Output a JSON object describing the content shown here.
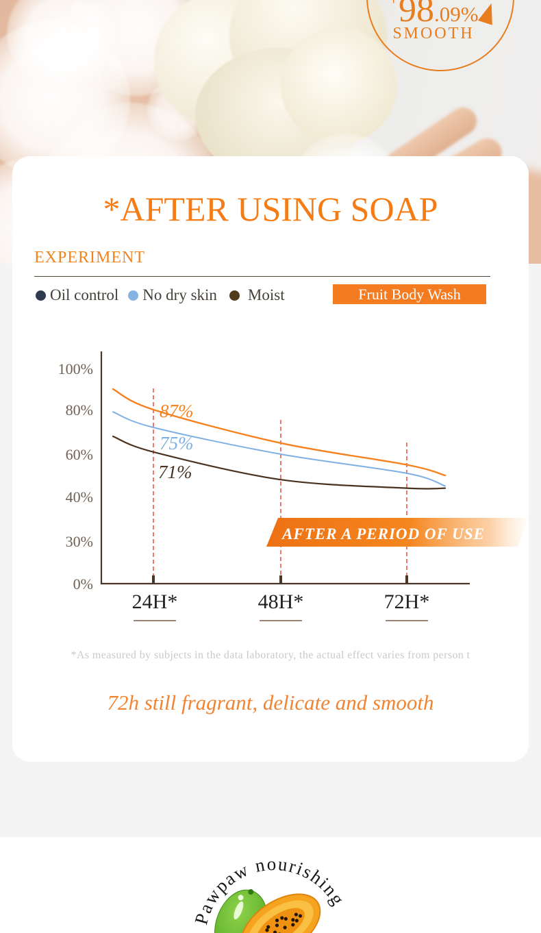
{
  "palette": {
    "accent_orange": "#f47b20",
    "title_orange": "#f57c15",
    "tagline_orange": "#f08433",
    "guide_red": "#e8402e",
    "axis_brown": "#4a3526"
  },
  "hero": {
    "badge": {
      "prefix": "+",
      "main": "98",
      "decimals": ".09%",
      "word": "SMOOTH"
    }
  },
  "card": {
    "title": "*AFTER USING SOAP",
    "section_label": "EXPERIMENT",
    "legend": [
      {
        "label": "Oil control",
        "dot_color": "#2e3a4e"
      },
      {
        "label": "No dry skin",
        "dot_color": "#85b4e2"
      },
      {
        "label": "Moist",
        "dot_color": "#543a1c"
      }
    ],
    "product_button_label": "Fruit Body Wash",
    "footnote": "*As measured by subjects in the data laboratory, the actual effect varies from person t",
    "tagline": "72h still fragrant, delicate and smooth"
  },
  "chart_data": {
    "type": "line",
    "title": "*AFTER USING SOAP",
    "x_tick_labels": [
      "24H*",
      "48H*",
      "72H*"
    ],
    "y_tick_labels": [
      "100%",
      "80%",
      "60%",
      "40%",
      "30%",
      "0%"
    ],
    "y_tick_values": [
      100,
      80,
      60,
      40,
      30,
      0
    ],
    "y_axis_nonlinear": true,
    "grid": false,
    "legend_entries": [
      "Oil control",
      "No dry skin",
      "Moist"
    ],
    "banner_annotation": "AFTER A PERIOD OF USE",
    "guide_lines": {
      "at_x": [
        "24H*",
        "48H*",
        "72H*"
      ],
      "style": "dashed",
      "color": "#e8402e"
    },
    "series": [
      {
        "name": "Fruit Body Wash",
        "color": "#f5821f",
        "annotation_label": "87%",
        "x": [
          "start",
          "24H",
          "48H",
          "72H",
          "end"
        ],
        "values": [
          90,
          80,
          65,
          55,
          50
        ]
      },
      {
        "name": "No dry skin",
        "color": "#7fb0e3",
        "annotation_label": "75%",
        "x": [
          "start",
          "24H",
          "48H",
          "72H",
          "end"
        ],
        "values": [
          79,
          72,
          60,
          51,
          45
        ]
      },
      {
        "name": "Moist",
        "color": "#4a3220",
        "annotation_label": "71%",
        "x": [
          "start",
          "24H",
          "48H",
          "72H",
          "end"
        ],
        "values": [
          68,
          61,
          48,
          44,
          44
        ]
      }
    ]
  },
  "footer": {
    "arc_text": "Pawpaw nourishing"
  }
}
